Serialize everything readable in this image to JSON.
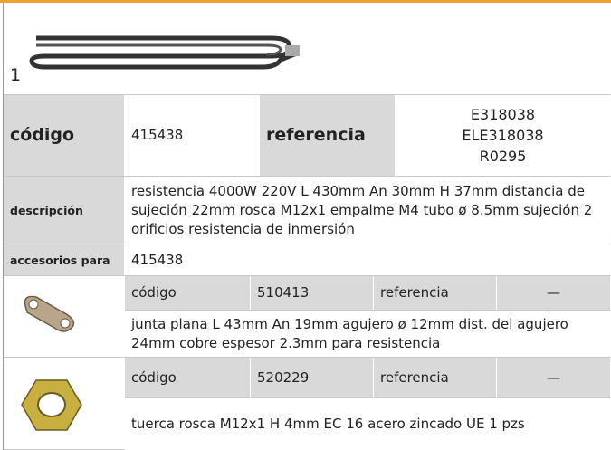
{
  "header": {
    "item_number": "1"
  },
  "main": {
    "code_label": "código",
    "code": "415438",
    "reference_label": "referencia",
    "references": [
      "E318038",
      "ELE318038",
      "R0295"
    ],
    "description_label": "descripción",
    "description": "resistencia  4000W 220V L 430mm An 30mm H 37mm distancia de sujeción 22mm rosca M12x1 empalme M4 tubo ø 8.5mm sujeción 2 orificios resistencia de inmersión",
    "accessories_label": "accesorios para",
    "accessories_for": "415438"
  },
  "accessories": [
    {
      "code_label": "código",
      "code": "510413",
      "reference_label": "referencia",
      "reference": "—",
      "description": "junta plana  L 43mm An 19mm agujero ø 12mm dist. del agujero 24mm cobre espesor  2.3mm para resistencia"
    },
    {
      "code_label": "código",
      "code": "520229",
      "reference_label": "referencia",
      "reference": "—",
      "description": "tuerca  rosca M12x1 H 4mm EC 16 acero zincado UE 1 pzs"
    }
  ]
}
